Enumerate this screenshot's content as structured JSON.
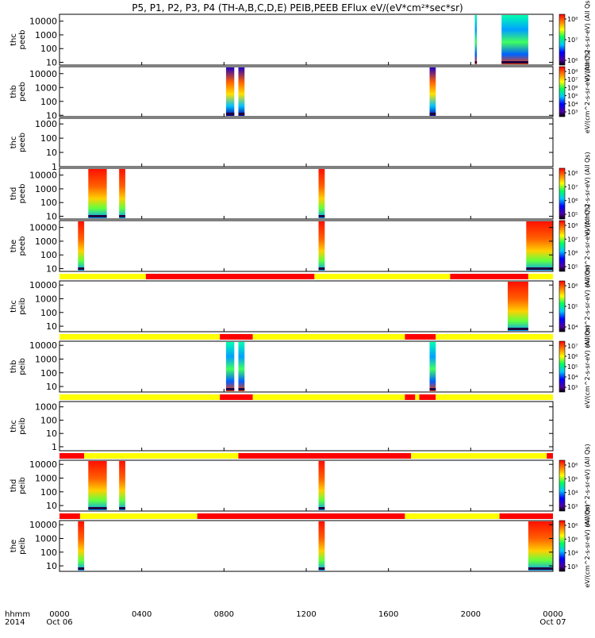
{
  "chart_data": {
    "type": "heatmap",
    "title": "P5, P1, P2, P3, P4 (TH-A,B,C,D,E) PEIB,PEEB EFlux eV/(eV*cm²*sec*sr)",
    "time_axis": {
      "row_label": "hhmm",
      "year": "2014",
      "ticks": [
        {
          "hour": 0,
          "label": "0000",
          "sub": "Oct 06"
        },
        {
          "hour": 4,
          "label": "0400",
          "sub": ""
        },
        {
          "hour": 8,
          "label": "0800",
          "sub": ""
        },
        {
          "hour": 12,
          "label": "1200",
          "sub": ""
        },
        {
          "hour": 16,
          "label": "1600",
          "sub": ""
        },
        {
          "hour": 20,
          "label": "2000",
          "sub": ""
        },
        {
          "hour": 24,
          "label": "0000",
          "sub": "Oct 07"
        }
      ],
      "range_hours": [
        0,
        24
      ]
    },
    "panels": [
      {
        "probe": "thc",
        "instrument": "peeb",
        "yticks": [
          "10000",
          "1000",
          "100",
          "10"
        ],
        "ylog": [
          0.8,
          4.5
        ],
        "colorbar": {
          "ticks": [
            "10⁸",
            "10⁷",
            "10⁶"
          ],
          "label": "eV/(cm^2-s-sr-eV) (All Qs)"
        },
        "bursts": [
          [
            20.2,
            20.3
          ],
          [
            21.5,
            22.8
          ]
        ],
        "pattern": "cool",
        "bar_states": []
      },
      {
        "probe": "thb",
        "instrument": "peeb",
        "yticks": [
          "10000",
          "1000",
          "100",
          "10"
        ],
        "ylog": [
          0.9,
          4.5
        ],
        "colorbar": {
          "ticks": [
            "10⁸",
            "10⁷",
            "10⁶",
            "10⁵",
            "10⁴",
            "10³"
          ],
          "label": "eV/(cm^2-s-sr-eV) (All Qs)"
        },
        "bursts": [
          [
            8.1,
            8.5
          ],
          [
            8.7,
            9.0
          ],
          [
            18.0,
            18.3
          ]
        ],
        "pattern": "mixed",
        "bar_states": []
      },
      {
        "probe": "thc",
        "instrument": "peeb",
        "yticks": [
          "1000",
          "100",
          "10",
          "1"
        ],
        "ylog": [
          0,
          3.4
        ],
        "colorbar": null,
        "bursts": [],
        "pattern": "none",
        "bar_states": []
      },
      {
        "probe": "thd",
        "instrument": "peeb",
        "yticks": [
          "10000",
          "1000",
          "100",
          "10"
        ],
        "ylog": [
          0.8,
          4.5
        ],
        "colorbar": {
          "ticks": [
            "10⁸",
            "10⁷",
            "10⁶",
            "10⁵"
          ],
          "label": "eV/(cm^2-s-sr-eV) (All Qs)"
        },
        "bursts": [
          [
            1.4,
            2.3
          ],
          [
            2.9,
            3.2
          ],
          [
            12.6,
            12.9
          ]
        ],
        "pattern": "hot",
        "bar_states": []
      },
      {
        "probe": "the",
        "instrument": "peeb",
        "yticks": [
          "10000",
          "1000",
          "100",
          "10"
        ],
        "ylog": [
          0.8,
          4.5
        ],
        "colorbar": {
          "ticks": [
            "10⁸",
            "10⁷",
            "10⁶",
            "10⁵"
          ],
          "label": "eV/(cm^2-s-sr-eV) (All Qs)"
        },
        "bursts": [
          [
            0.9,
            1.2
          ],
          [
            12.6,
            12.9
          ],
          [
            22.7,
            24.0
          ]
        ],
        "pattern": "hot",
        "bar_states": []
      },
      {
        "probe": "thc",
        "instrument": "peib",
        "yticks": [
          "10000",
          "1000",
          "100",
          "10"
        ],
        "ylog": [
          0.6,
          4.3
        ],
        "colorbar": {
          "ticks": [
            "10⁶",
            "10⁵",
            "10⁴"
          ],
          "label": "eV/(cm^2-s-sr-eV) (All Qs)"
        },
        "bursts": [
          [
            21.8,
            22.8
          ]
        ],
        "pattern": "hot",
        "bar_states": [
          [
            0,
            4.2,
            "yellow"
          ],
          [
            4.2,
            12.4,
            "red"
          ],
          [
            12.4,
            19.0,
            "yellow"
          ],
          [
            19.0,
            22.8,
            "red"
          ],
          [
            22.8,
            24.0,
            "yellow"
          ]
        ]
      },
      {
        "probe": "thb",
        "instrument": "peib",
        "yticks": [
          "10000",
          "1000",
          "100",
          "10"
        ],
        "ylog": [
          0.6,
          4.3
        ],
        "colorbar": {
          "ticks": [
            "10⁷",
            "10⁶",
            "10⁵",
            "10⁴",
            "10³"
          ],
          "label": "eV/(cm^2-s-sr-eV) (All Qs)"
        },
        "bursts": [
          [
            8.1,
            8.5
          ],
          [
            8.7,
            9.0
          ],
          [
            18.0,
            18.3
          ]
        ],
        "pattern": "cool",
        "bar_states": [
          [
            0,
            7.8,
            "yellow"
          ],
          [
            7.8,
            9.4,
            "red"
          ],
          [
            9.4,
            16.8,
            "yellow"
          ],
          [
            16.8,
            18.3,
            "red"
          ],
          [
            18.3,
            24.0,
            "yellow"
          ]
        ]
      },
      {
        "probe": "thc",
        "instrument": "peib",
        "yticks": [
          "1000",
          "100",
          "10",
          "1"
        ],
        "ylog": [
          -0.3,
          3.4
        ],
        "colorbar": null,
        "bursts": [],
        "pattern": "none",
        "bar_states": [
          [
            0,
            7.8,
            "yellow"
          ],
          [
            7.8,
            9.4,
            "red"
          ],
          [
            9.4,
            16.8,
            "yellow"
          ],
          [
            16.8,
            17.3,
            "red"
          ],
          [
            17.3,
            17.5,
            "yellow"
          ],
          [
            17.5,
            18.3,
            "red"
          ],
          [
            18.3,
            24.0,
            "yellow"
          ]
        ]
      },
      {
        "probe": "thd",
        "instrument": "peib",
        "yticks": [
          "10000",
          "1000",
          "100",
          "10"
        ],
        "ylog": [
          0.6,
          4.3
        ],
        "colorbar": {
          "ticks": [
            "10⁶",
            "10⁵",
            "10⁴",
            "10³"
          ],
          "label": "eV/(cm^2-s-sr-eV) (All Qs)"
        },
        "bursts": [
          [
            1.4,
            2.3
          ],
          [
            2.9,
            3.2
          ],
          [
            12.6,
            12.9
          ]
        ],
        "pattern": "hot",
        "bar_states": [
          [
            0,
            1.2,
            "red"
          ],
          [
            1.2,
            3.2,
            "yellow"
          ],
          [
            3.2,
            8.7,
            "yellow"
          ],
          [
            8.7,
            17.1,
            "red"
          ],
          [
            17.1,
            23.7,
            "yellow"
          ],
          [
            23.7,
            24.0,
            "red"
          ]
        ]
      },
      {
        "probe": "the",
        "instrument": "peib",
        "yticks": [
          "10000",
          "1000",
          "100",
          "10"
        ],
        "ylog": [
          0.6,
          4.3
        ],
        "colorbar": {
          "ticks": [
            "10⁶",
            "10⁵",
            "10⁴",
            "10³"
          ],
          "label": "eV/(cm^2-s-sr-eV) (All Qs)"
        },
        "bursts": [
          [
            0.9,
            1.2
          ],
          [
            12.6,
            12.9
          ],
          [
            22.8,
            24.0
          ]
        ],
        "pattern": "hot",
        "bar_states": [
          [
            0,
            1.0,
            "red"
          ],
          [
            1.0,
            6.7,
            "yellow"
          ],
          [
            6.7,
            16.8,
            "red"
          ],
          [
            16.8,
            21.4,
            "yellow"
          ],
          [
            21.4,
            24.0,
            "red"
          ]
        ]
      }
    ]
  }
}
